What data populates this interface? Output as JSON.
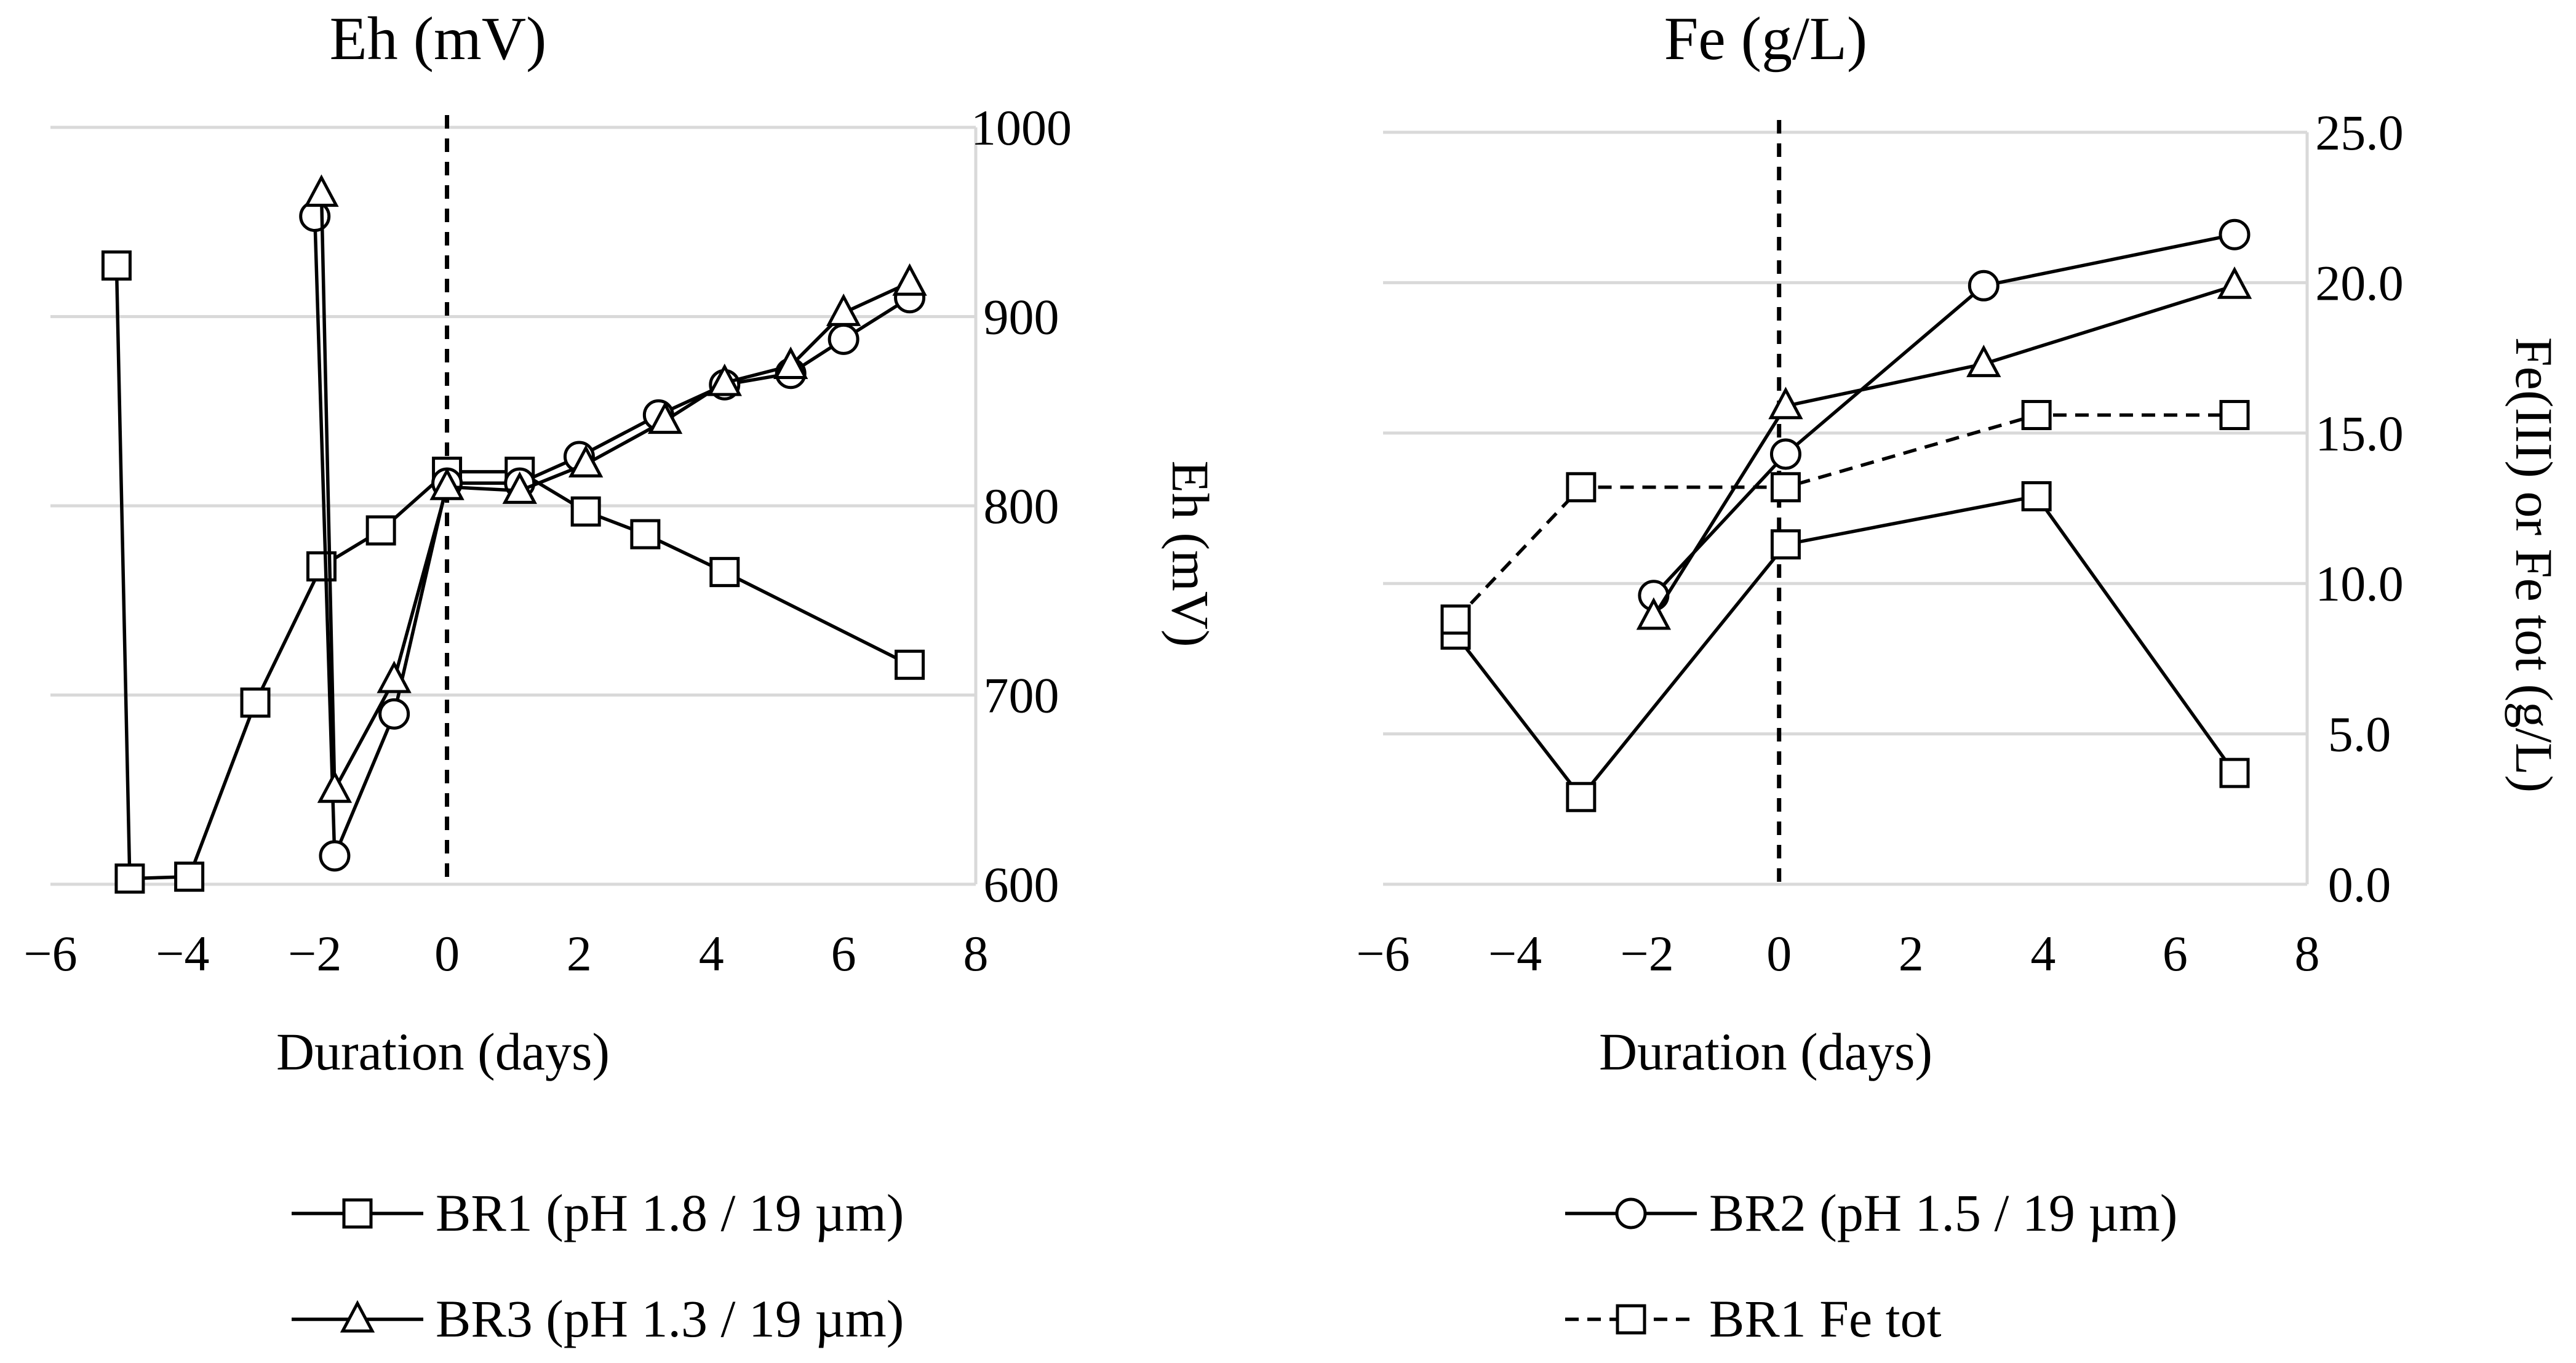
{
  "chart_data": [
    {
      "type": "line",
      "title": "Eh (mV)",
      "xlabel": "Duration (days)",
      "ylabel": "Eh (mV)",
      "xlim": [
        -6,
        8
      ],
      "ylim": [
        600,
        1000
      ],
      "xticks": [
        "−6",
        "−4",
        "−2",
        "0",
        "2",
        "4",
        "6",
        "8"
      ],
      "yticks": [
        "600",
        "700",
        "800",
        "900",
        "1000"
      ],
      "reference_line_x": 0,
      "series": [
        {
          "name": "BR1 (pH 1.8 / 19 µm)",
          "marker": "square",
          "dashed": false,
          "x": [
            -5.0,
            -4.8,
            -3.9,
            -2.9,
            -1.9,
            -1.0,
            0.0,
            1.1,
            2.1,
            3.0,
            4.2,
            7.0
          ],
          "y": [
            927,
            603,
            604,
            696,
            768,
            787,
            818,
            818,
            797,
            785,
            765,
            716
          ]
        },
        {
          "name": "BR2 (pH 1.5 / 19 µm)",
          "marker": "circle",
          "dashed": false,
          "x": [
            -2.0,
            -1.7,
            -0.8,
            0.0,
            1.1,
            2.0,
            3.2,
            4.2,
            5.2,
            6.0,
            7.0
          ],
          "y": [
            953,
            615,
            690,
            812,
            812,
            826,
            848,
            864,
            870,
            888,
            910
          ]
        },
        {
          "name": "BR3 (pH 1.3 / 19 µm)",
          "marker": "triangle",
          "dashed": false,
          "x": [
            -1.9,
            -1.7,
            -0.8,
            0.0,
            1.1,
            2.1,
            3.3,
            4.2,
            5.2,
            6.0,
            7.0
          ],
          "y": [
            965,
            650,
            708,
            810,
            808,
            822,
            845,
            865,
            874,
            902,
            918
          ]
        }
      ]
    },
    {
      "type": "line",
      "title": "Fe (g/L)",
      "xlabel": "Duration (days)",
      "ylabel": "Fe(III) or Fe tot (g/L)",
      "xlim": [
        -6,
        8
      ],
      "ylim": [
        0,
        25
      ],
      "xticks": [
        "−6",
        "−4",
        "−2",
        "0",
        "2",
        "4",
        "6",
        "8"
      ],
      "yticks": [
        "0.0",
        "5.0",
        "10.0",
        "15.0",
        "20.0",
        "25.0"
      ],
      "reference_line_x": 0,
      "series": [
        {
          "name": "BR1 (pH 1.8 / 19 µm)",
          "marker": "square",
          "dashed": false,
          "x": [
            -4.9,
            -3.0,
            0.1,
            3.9,
            6.9
          ],
          "y": [
            8.3,
            2.9,
            11.3,
            12.9,
            3.7
          ]
        },
        {
          "name": "BR2 (pH 1.5 / 19 µm)",
          "marker": "circle",
          "dashed": false,
          "x": [
            -1.9,
            0.1,
            3.1,
            6.9
          ],
          "y": [
            9.6,
            14.3,
            19.9,
            21.6
          ]
        },
        {
          "name": "BR3 (pH 1.3 / 19 µm)",
          "marker": "triangle",
          "dashed": false,
          "x": [
            -1.9,
            0.1,
            3.1,
            6.9
          ],
          "y": [
            8.9,
            15.9,
            17.3,
            19.9
          ]
        },
        {
          "name": "BR1 Fe tot",
          "marker": "square",
          "dashed": true,
          "x": [
            -4.9,
            -3.0,
            0.1,
            3.9,
            6.9
          ],
          "y": [
            8.8,
            13.2,
            13.2,
            15.6,
            15.6
          ]
        }
      ]
    }
  ],
  "legend": {
    "items": [
      {
        "label": "BR1 (pH 1.8 / 19 µm)",
        "marker": "square",
        "dashed": false
      },
      {
        "label": "BR2 (pH 1.5 / 19 µm)",
        "marker": "circle",
        "dashed": false
      },
      {
        "label": "BR3 (pH 1.3 / 19 µm)",
        "marker": "triangle",
        "dashed": false
      },
      {
        "label": "BR1 Fe tot",
        "marker": "square",
        "dashed": true
      }
    ]
  }
}
